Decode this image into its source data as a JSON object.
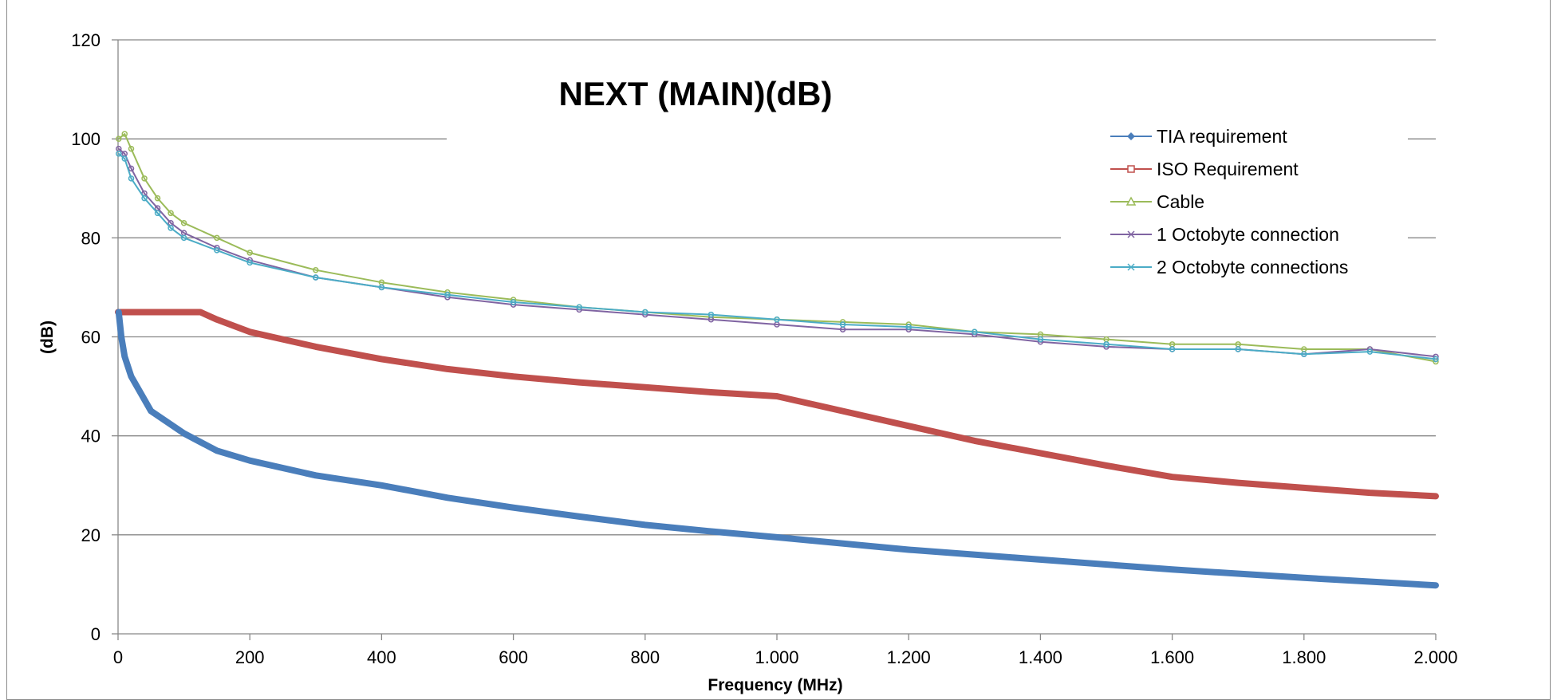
{
  "chart_data": {
    "type": "line",
    "title": "NEXT (MAIN)(dB)",
    "xlabel": "Frequency (MHz)",
    "ylabel": "(dB)",
    "xlim": [
      0,
      2000
    ],
    "ylim": [
      0,
      120
    ],
    "x_ticks": [
      0,
      200,
      400,
      600,
      800,
      1000,
      1200,
      1400,
      1600,
      1800,
      2000
    ],
    "x_tick_labels": [
      "0",
      "200",
      "400",
      "600",
      "800",
      "1.000",
      "1.200",
      "1.400",
      "1.600",
      "1.800",
      "2.000"
    ],
    "y_ticks": [
      0,
      20,
      40,
      60,
      80,
      100,
      120
    ],
    "y_tick_labels": [
      "0",
      "20",
      "40",
      "60",
      "80",
      "100",
      "120"
    ],
    "grid": "horizontal",
    "legend_position": "top-right",
    "series": [
      {
        "name": "TIA requirement",
        "color": "#4a7ebb",
        "marker": "diamond",
        "x": [
          1,
          5,
          10,
          20,
          50,
          100,
          150,
          200,
          300,
          400,
          500,
          600,
          700,
          800,
          900,
          1000,
          1200,
          1400,
          1600,
          1800,
          2000
        ],
        "y": [
          65,
          60,
          56,
          52,
          45,
          40.5,
          37,
          35,
          32,
          30,
          27.5,
          25.5,
          23.7,
          22,
          20.7,
          19.5,
          17,
          15,
          13,
          11.3,
          9.8
        ]
      },
      {
        "name": "ISO Requirement",
        "color": "#c0504d",
        "marker": "square",
        "x": [
          0,
          125,
          150,
          200,
          250,
          300,
          400,
          500,
          600,
          700,
          800,
          900,
          1000,
          1100,
          1200,
          1300,
          1400,
          1500,
          1600,
          1700,
          1800,
          1900,
          2000
        ],
        "y": [
          65,
          65,
          63.5,
          61,
          59.5,
          58,
          55.5,
          53.5,
          52,
          50.8,
          49.8,
          48.8,
          48,
          45,
          42,
          39,
          36.5,
          34,
          31.7,
          30.5,
          29.5,
          28.5,
          27.8
        ]
      },
      {
        "name": "Cable",
        "color": "#9bbb59",
        "marker": "triangle",
        "x": [
          1,
          10,
          20,
          40,
          60,
          80,
          100,
          150,
          200,
          300,
          400,
          500,
          600,
          700,
          800,
          900,
          1000,
          1100,
          1200,
          1300,
          1400,
          1500,
          1600,
          1700,
          1800,
          1900,
          2000
        ],
        "y": [
          100,
          101,
          98,
          92,
          88,
          85,
          83,
          80,
          77,
          73.5,
          71,
          69,
          67.5,
          66,
          65,
          64,
          63.5,
          63,
          62.5,
          61,
          60.5,
          59.5,
          58.5,
          58.5,
          57.5,
          57.5,
          55
        ]
      },
      {
        "name": "1 Octobyte connection",
        "color": "#8064a2",
        "marker": "x",
        "x": [
          1,
          10,
          20,
          40,
          60,
          80,
          100,
          150,
          200,
          300,
          400,
          500,
          600,
          700,
          800,
          900,
          1000,
          1100,
          1200,
          1300,
          1400,
          1500,
          1600,
          1700,
          1800,
          1900,
          2000
        ],
        "y": [
          98,
          97,
          94,
          89,
          86,
          83,
          81,
          78,
          75.5,
          72,
          70,
          68,
          66.5,
          65.5,
          64.5,
          63.5,
          62.5,
          61.5,
          61.5,
          60.5,
          59,
          58,
          57.5,
          57.5,
          56.5,
          57.5,
          56
        ]
      },
      {
        "name": "2 Octobyte connections",
        "color": "#4bacc6",
        "marker": "star",
        "x": [
          1,
          10,
          20,
          40,
          60,
          80,
          100,
          150,
          200,
          300,
          400,
          500,
          600,
          700,
          800,
          900,
          1000,
          1100,
          1200,
          1300,
          1400,
          1500,
          1600,
          1700,
          1800,
          1900,
          2000
        ],
        "y": [
          97,
          96,
          92,
          88,
          85,
          82,
          80,
          77.5,
          75,
          72,
          70,
          68.5,
          67,
          66,
          65,
          64.5,
          63.5,
          62.5,
          62,
          61,
          59.5,
          58.5,
          57.5,
          57.5,
          56.5,
          57,
          55.5
        ]
      }
    ]
  }
}
